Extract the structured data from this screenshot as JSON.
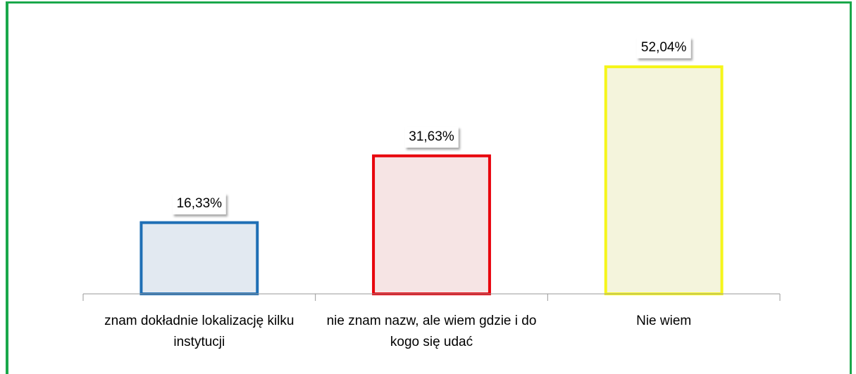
{
  "chart_data": {
    "type": "bar",
    "categories": [
      "znam dokładnie lokalizację kilku instytucji",
      "nie znam nazw, ale wiem gdzie i do kogo się udać",
      "Nie wiem"
    ],
    "values": [
      16.33,
      31.63,
      52.04
    ],
    "value_labels": [
      "16,33%",
      "31,63%",
      "52,04%"
    ],
    "colors": [
      "#1f6fb5",
      "#e8000b",
      "#f5f51a"
    ],
    "fill_colors": [
      "#e2e9f1",
      "#f6e4e4",
      "#f4f4dc"
    ],
    "grid": false
  }
}
